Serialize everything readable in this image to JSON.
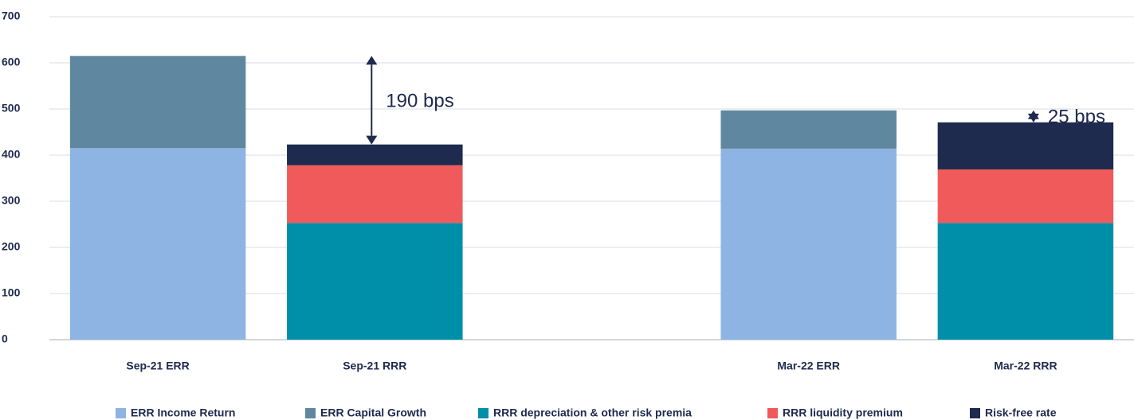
{
  "chart_data": {
    "type": "stacked-bar",
    "categories": [
      "Sep-21 ERR",
      "Sep-21 RRR",
      null,
      "Mar-22 ERR",
      "Mar-22 RRR"
    ],
    "series": [
      {
        "name": "ERR Income Return",
        "color": "#8db4e2",
        "values": [
          415,
          null,
          null,
          414,
          null
        ]
      },
      {
        "name": "ERR Capital Growth",
        "color": "#5f88a0",
        "values": [
          200,
          null,
          null,
          83,
          null
        ]
      },
      {
        "name": "RRR depreciation & other risk premia",
        "color": "#008fa8",
        "values": [
          null,
          253,
          null,
          null,
          253
        ]
      },
      {
        "name": "RRR liquidity premium",
        "color": "#f05a5a",
        "values": [
          null,
          125,
          null,
          null,
          116
        ]
      },
      {
        "name": "Risk-free rate",
        "color": "#1e2a4e",
        "values": [
          null,
          45,
          null,
          null,
          102
        ]
      }
    ],
    "annotations": [
      "190 bps",
      "25 bps"
    ],
    "ylim": [
      0,
      700
    ],
    "yticks": [
      0,
      100,
      200,
      300,
      400,
      500,
      600,
      700
    ],
    "grid": true,
    "legend": "bottom"
  }
}
